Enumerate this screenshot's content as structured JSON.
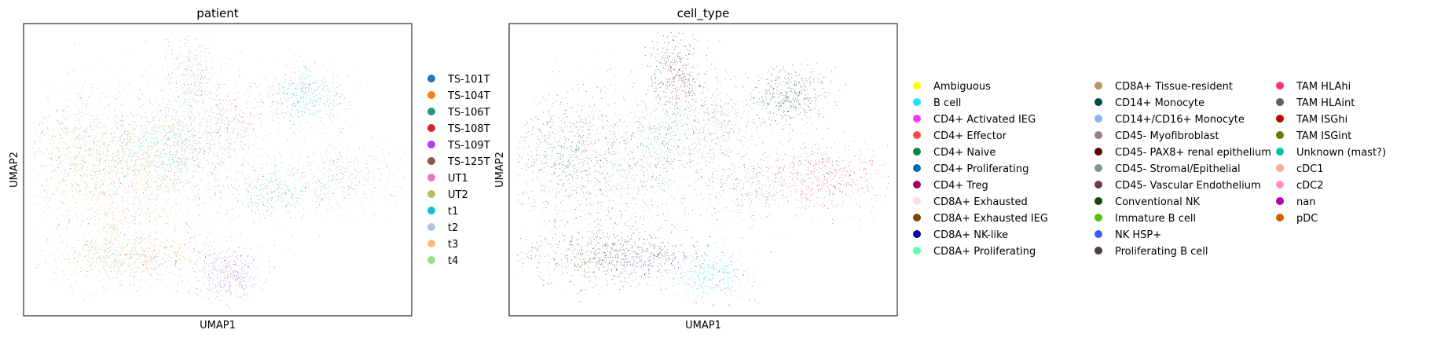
{
  "chart_data": [
    {
      "type": "scatter",
      "title": "patient",
      "xlabel": "UMAP1",
      "ylabel": "UMAP2",
      "grid": false,
      "legend": "right",
      "x_ticks": false,
      "y_ticks": false,
      "series": [
        {
          "name": "TS-101T",
          "color": "#1f77b4"
        },
        {
          "name": "TS-104T",
          "color": "#ff7f0e"
        },
        {
          "name": "TS-106T",
          "color": "#279e68"
        },
        {
          "name": "TS-108T",
          "color": "#d62728"
        },
        {
          "name": "TS-109T",
          "color": "#aa40fc"
        },
        {
          "name": "TS-125T",
          "color": "#8c564b"
        },
        {
          "name": "UT1",
          "color": "#e377c2"
        },
        {
          "name": "UT2",
          "color": "#b5bd61"
        },
        {
          "name": "t1",
          "color": "#17becf"
        },
        {
          "name": "t2",
          "color": "#aec7e8"
        },
        {
          "name": "t3",
          "color": "#ffbb78"
        },
        {
          "name": "t4",
          "color": "#98df8a"
        }
      ]
    },
    {
      "type": "scatter",
      "title": "cell_type",
      "xlabel": "UMAP1",
      "ylabel": "UMAP2",
      "grid": false,
      "legend": "right",
      "x_ticks": false,
      "y_ticks": false,
      "series": [
        {
          "name": "Ambiguous",
          "color": "#ffff00"
        },
        {
          "name": "B cell",
          "color": "#1ce6ff"
        },
        {
          "name": "CD4+ Activated IEG",
          "color": "#ff34ff"
        },
        {
          "name": "CD4+ Effector",
          "color": "#ff4a46"
        },
        {
          "name": "CD4+ Naive",
          "color": "#008941"
        },
        {
          "name": "CD4+ Proliferating",
          "color": "#006fa6"
        },
        {
          "name": "CD4+ Treg",
          "color": "#a30059"
        },
        {
          "name": "CD8A+ Exhausted",
          "color": "#ffdbe5"
        },
        {
          "name": "CD8A+ Exhausted IEG",
          "color": "#7a4900"
        },
        {
          "name": "CD8A+ NK-like",
          "color": "#0000a6"
        },
        {
          "name": "CD8A+ Proliferating",
          "color": "#63ffac"
        },
        {
          "name": "CD8A+ Tissue-resident",
          "color": "#b79762"
        },
        {
          "name": "CD14+ Monocyte",
          "color": "#004d43"
        },
        {
          "name": "CD14+/CD16+ Monocyte",
          "color": "#8fb0ff"
        },
        {
          "name": "CD45- Myofibroblast",
          "color": "#997d87"
        },
        {
          "name": "CD45- PAX8+ renal epithelium",
          "color": "#5a0007"
        },
        {
          "name": "CD45- Stromal/Epithelial",
          "color": "#809693"
        },
        {
          "name": "CD45- Vascular Endothelium",
          "color": "#6a3a4c"
        },
        {
          "name": "Conventional NK",
          "color": "#1b4400"
        },
        {
          "name": "Immature B cell",
          "color": "#4fc601"
        },
        {
          "name": "NK HSP+",
          "color": "#3b5dff"
        },
        {
          "name": "Proliferating B cell",
          "color": "#4a3b53"
        },
        {
          "name": "TAM HLAhi",
          "color": "#ff2f80"
        },
        {
          "name": "TAM HLAint",
          "color": "#61615a"
        },
        {
          "name": "TAM ISGhi",
          "color": "#ba0900"
        },
        {
          "name": "TAM ISGint",
          "color": "#6b7900"
        },
        {
          "name": "Unknown (mast?)",
          "color": "#00c2a0"
        },
        {
          "name": "cDC1",
          "color": "#ffaa92"
        },
        {
          "name": "cDC2",
          "color": "#ff90c9"
        },
        {
          "name": "nan",
          "color": "#b903aa"
        },
        {
          "name": "pDC",
          "color": "#d16100"
        }
      ]
    }
  ]
}
